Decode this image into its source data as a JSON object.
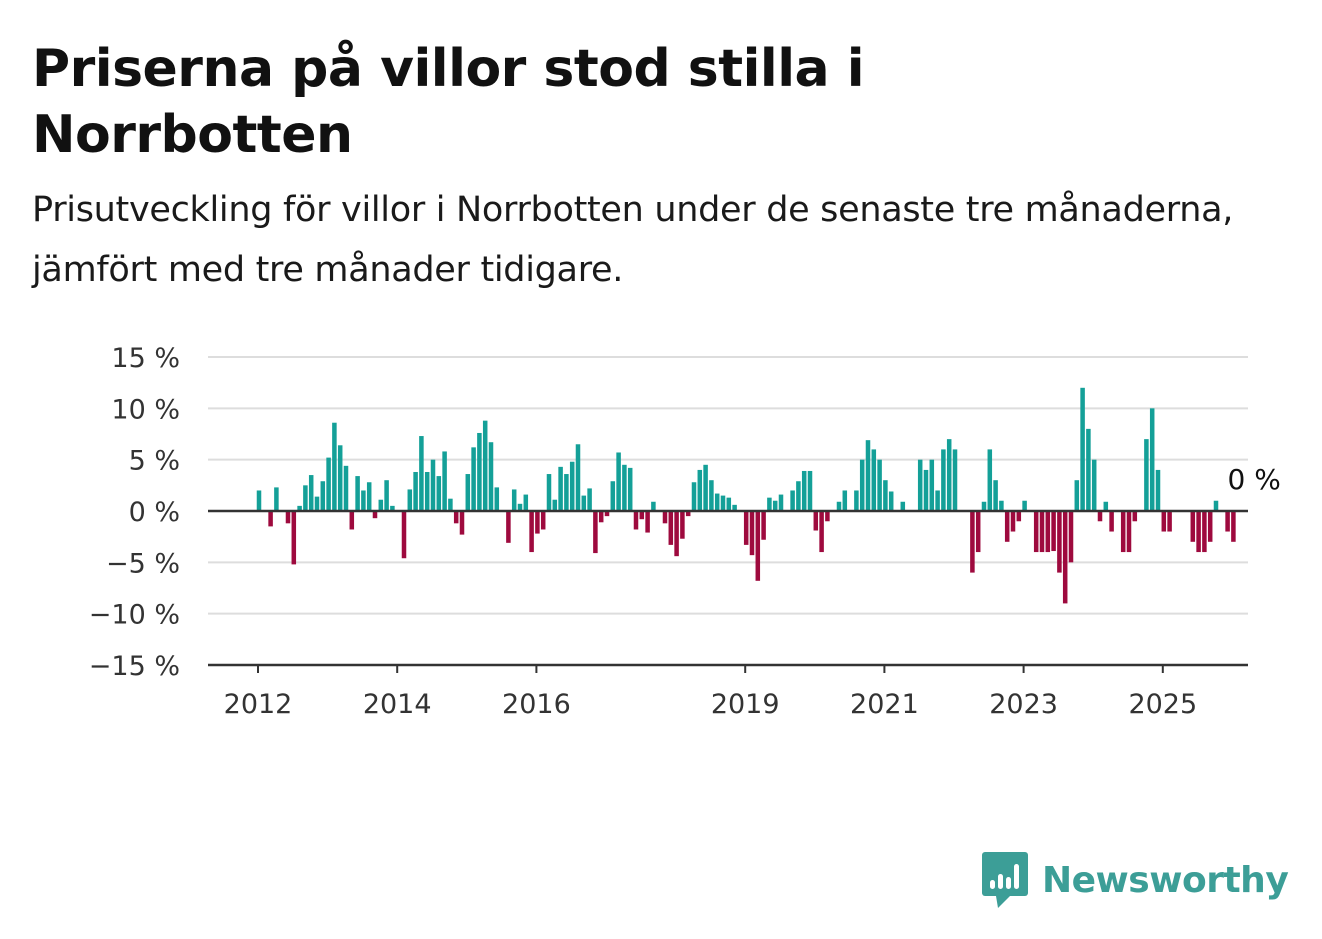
{
  "title": "Priserna på villor stod stilla i Norrbotten",
  "subtitle": "Prisutveckling för villor i Norrbotten under de senaste tre månaderna, jämfört med tre månader tidigare.",
  "brand": {
    "name": "Newsworthy",
    "color": "#3c9e97"
  },
  "colors": {
    "positive": "#14a098",
    "negative": "#9e0a3e",
    "grid": "#dddddd",
    "axis": "#333333"
  },
  "chart_data": {
    "type": "bar",
    "title": "",
    "xlabel": "",
    "ylabel": "",
    "ylim": [
      -15,
      15
    ],
    "yticks": [
      15,
      10,
      5,
      0,
      -5,
      -10,
      -15
    ],
    "ytick_labels": [
      "15 %",
      "10 %",
      "5 %",
      "0 %",
      "−5 %",
      "−10 %",
      "−15 %"
    ],
    "xticks": [
      "2012",
      "2014",
      "2016",
      "2019",
      "2021",
      "2023",
      "2025"
    ],
    "xtick_positions": [
      2012,
      2014,
      2016,
      2019,
      2021,
      2023,
      2025
    ],
    "grid": true,
    "last_value_label": "0 %",
    "start": "2012-01",
    "frequency": "monthly",
    "values": [
      2.0,
      0.0,
      -1.5,
      2.3,
      0.0,
      -1.2,
      -5.2,
      0.5,
      2.5,
      3.5,
      1.4,
      2.9,
      5.2,
      8.6,
      6.4,
      4.4,
      -1.8,
      3.4,
      2.0,
      2.8,
      -0.7,
      1.1,
      3.0,
      0.5,
      0.0,
      -4.6,
      2.1,
      3.8,
      7.3,
      3.8,
      5.0,
      3.4,
      5.8,
      1.2,
      -1.2,
      -2.3,
      3.6,
      6.2,
      7.6,
      8.8,
      6.7,
      2.3,
      0.0,
      -3.1,
      2.1,
      0.7,
      1.6,
      -4.0,
      -2.2,
      -1.8,
      3.6,
      1.1,
      4.3,
      3.6,
      4.8,
      6.5,
      1.5,
      2.2,
      -4.1,
      -1.1,
      -0.5,
      2.9,
      5.7,
      4.5,
      4.2,
      -1.8,
      -0.8,
      -2.1,
      0.9,
      0.0,
      -1.2,
      -3.3,
      -4.4,
      -2.7,
      -0.5,
      2.8,
      4.0,
      4.5,
      3.0,
      1.7,
      1.5,
      1.3,
      0.6,
      0.0,
      -3.3,
      -4.3,
      -6.8,
      -2.8,
      1.3,
      1.0,
      1.6,
      0.0,
      2.0,
      2.9,
      3.9,
      3.9,
      -1.9,
      -4.0,
      -1.0,
      0.0,
      0.9,
      2.0,
      0.0,
      2.0,
      5.0,
      6.9,
      6.0,
      5.0,
      3.0,
      1.9,
      0.0,
      0.9,
      0.0,
      0.0,
      5.0,
      4.0,
      5.0,
      2.0,
      6.0,
      7.0,
      6.0,
      0.0,
      0.0,
      -6.0,
      -4.0,
      0.9,
      6.0,
      3.0,
      1.0,
      -3.0,
      -2.0,
      -1.0,
      1.0,
      0.0,
      -4.0,
      -4.0,
      -4.0,
      -3.9,
      -6.0,
      -9.0,
      -5.0,
      3.0,
      12.0,
      8.0,
      5.0,
      -1.0,
      0.9,
      -2.0,
      0.0,
      -4.0,
      -4.0,
      -1.0,
      0.0,
      7.0,
      10.0,
      4.0,
      -2.0,
      -2.0,
      0.0,
      0.0,
      0.0,
      -3.0,
      -4.0,
      -4.0,
      -3.0,
      1.0,
      0.0,
      -2.0,
      -3.0,
      0.0
    ]
  }
}
